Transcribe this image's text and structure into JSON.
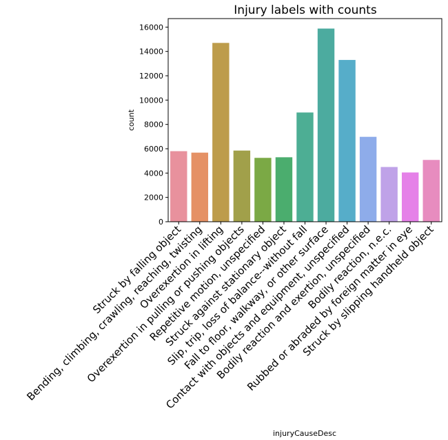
{
  "chart_data": {
    "type": "bar",
    "title": "Injury labels with counts",
    "xlabel": "injuryCauseDesc",
    "ylabel": "count",
    "ylim": [
      0,
      16700
    ],
    "yticks": [
      0,
      2000,
      4000,
      6000,
      8000,
      10000,
      12000,
      14000,
      16000
    ],
    "grid": false,
    "legend": "none",
    "categories": [
      "Struck by falling object",
      "Bending, climbing, crawling, reaching, twisting",
      "Overexertion in lifting",
      "Overexertion in pulling or pushing objects",
      "Repetitive motion, unspecified",
      "Struck against stationary object",
      "Slip, trip, loss of balance--without fall",
      "Fall to floor, walkway, or other surface",
      "Contact with objects and equipment, unspecified",
      "Bodily reaction and exertion, unspecified",
      "Bodily reaction, n.e.c.",
      "Rubbed or abraded by foreign matter in eye",
      "Struck by slipping handheld object"
    ],
    "values": [
      5800,
      5680,
      14700,
      5850,
      5250,
      5300,
      8980,
      15880,
      13300,
      6980,
      4500,
      4050,
      5080
    ],
    "colors": [
      "#e8919d",
      "#e59165",
      "#bd9c4b",
      "#a1a04a",
      "#7ba945",
      "#4bad6e",
      "#4dae94",
      "#4cab9f",
      "#56adc9",
      "#8eacea",
      "#bfa2e8",
      "#e581e8",
      "#e78cbf"
    ]
  }
}
